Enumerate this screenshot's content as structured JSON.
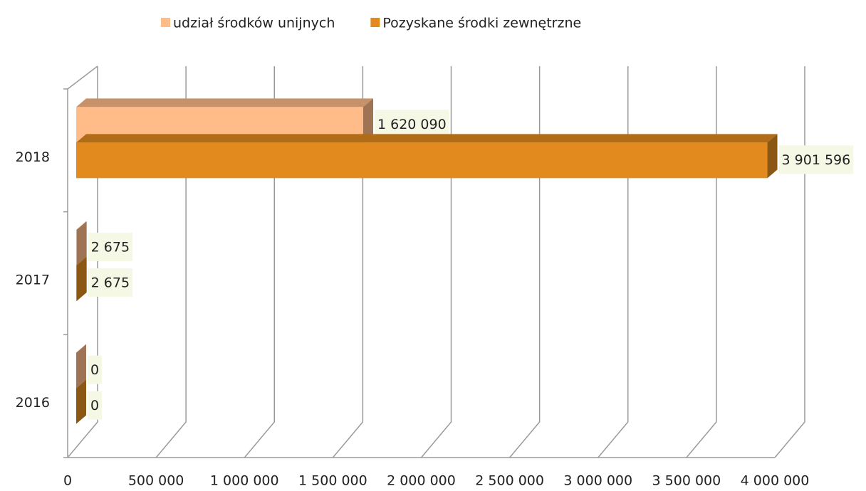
{
  "chart_data": {
    "type": "bar",
    "orientation": "horizontal",
    "categories": [
      "2016",
      "2017",
      "2018"
    ],
    "series": [
      {
        "name": "udział środków unijnych",
        "color": "#FFBB88",
        "values": [
          0,
          2675,
          1620090
        ],
        "value_labels": [
          "0",
          "2 675",
          "1 620 090"
        ]
      },
      {
        "name": "Pozyskane środki zewnętrzne",
        "color": "#E28A1E",
        "values": [
          0,
          2675,
          3901596
        ],
        "value_labels": [
          "0",
          "2 675",
          "3 901 596"
        ]
      }
    ],
    "xlim": [
      0,
      4000000
    ],
    "xticks": [
      0,
      {
        "value": 500000,
        "label": "500 000"
      },
      {
        "value": 1000000,
        "label": "1 000 000"
      },
      {
        "value": 1500000,
        "label": "1 500 000"
      },
      {
        "value": 2000000,
        "label": "2 000 000"
      },
      {
        "value": 2500000,
        "label": "2 500 000"
      },
      {
        "value": 3000000,
        "label": "3 000 000"
      },
      {
        "value": 3500000,
        "label": "3 500 000"
      },
      {
        "value": 4000000,
        "label": "4 000 000"
      }
    ],
    "grid": true,
    "legend": "top"
  }
}
